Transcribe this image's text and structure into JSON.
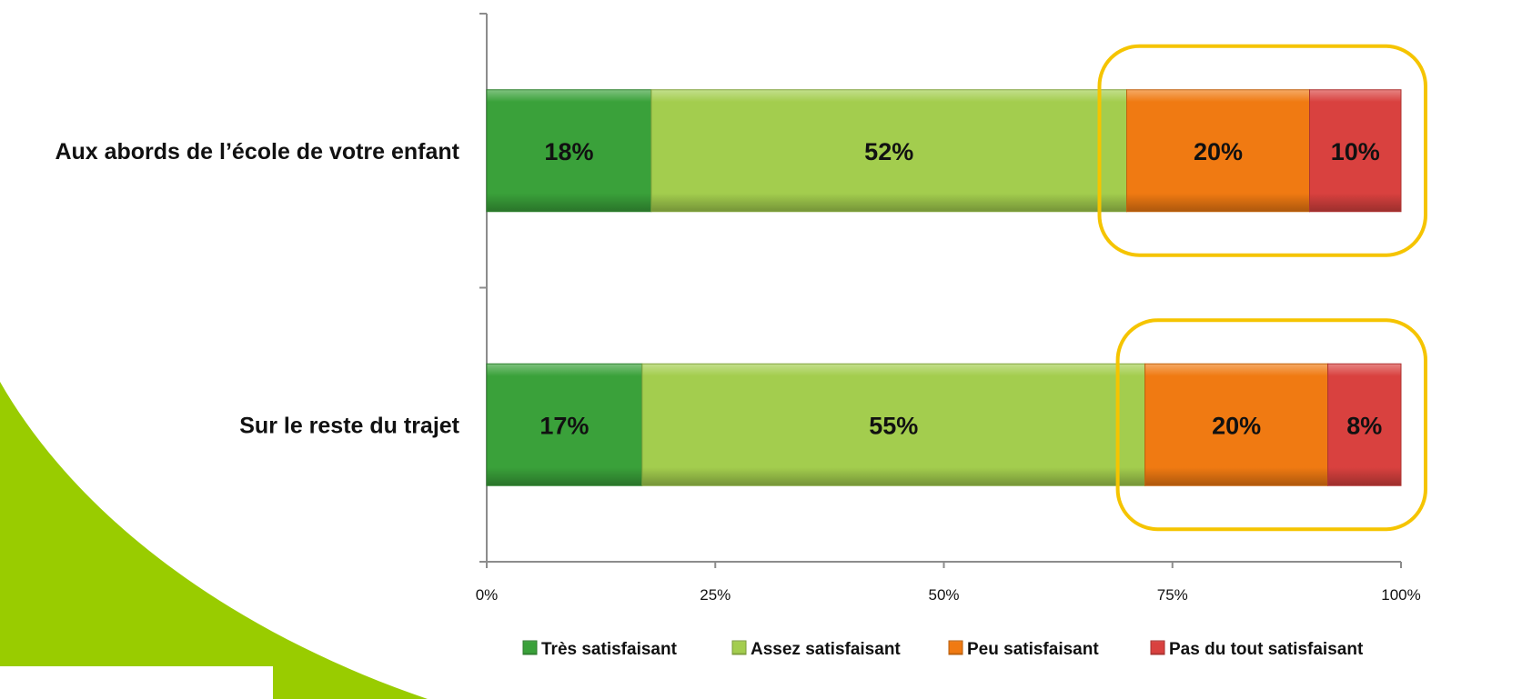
{
  "chart_data": {
    "type": "bar",
    "orientation": "horizontal",
    "stacked": true,
    "categories": [
      "Aux abords de l’école de votre enfant",
      "Sur le reste du trajet"
    ],
    "series": [
      {
        "name": "Très satisfaisant",
        "values": [
          18,
          17
        ],
        "labels": [
          "18%",
          "17%"
        ],
        "color": "#3aa13a"
      },
      {
        "name": "Assez satisfaisant",
        "values": [
          52,
          55
        ],
        "labels": [
          "52%",
          "55%"
        ],
        "color": "#a3cd4e"
      },
      {
        "name": "Peu satisfaisant",
        "values": [
          20,
          20
        ],
        "labels": [
          "20%",
          "20%"
        ],
        "color": "#f07a12"
      },
      {
        "name": "Pas du tout satisfaisant",
        "values": [
          10,
          8
        ],
        "labels": [
          "10%",
          "8%"
        ],
        "color": "#d9413f"
      }
    ],
    "xlim": [
      0,
      100
    ],
    "x_ticks": [
      0,
      25,
      50,
      75,
      100
    ],
    "x_tick_labels": [
      "0%",
      "25%",
      "50%",
      "75%",
      "100%"
    ],
    "legend_position": "bottom",
    "highlight": {
      "series": [
        "Peu satisfaisant",
        "Pas du tout satisfaisant"
      ],
      "color": "#f5c400"
    },
    "grid": false
  },
  "colors": {
    "accent_green": "#99cc00"
  }
}
